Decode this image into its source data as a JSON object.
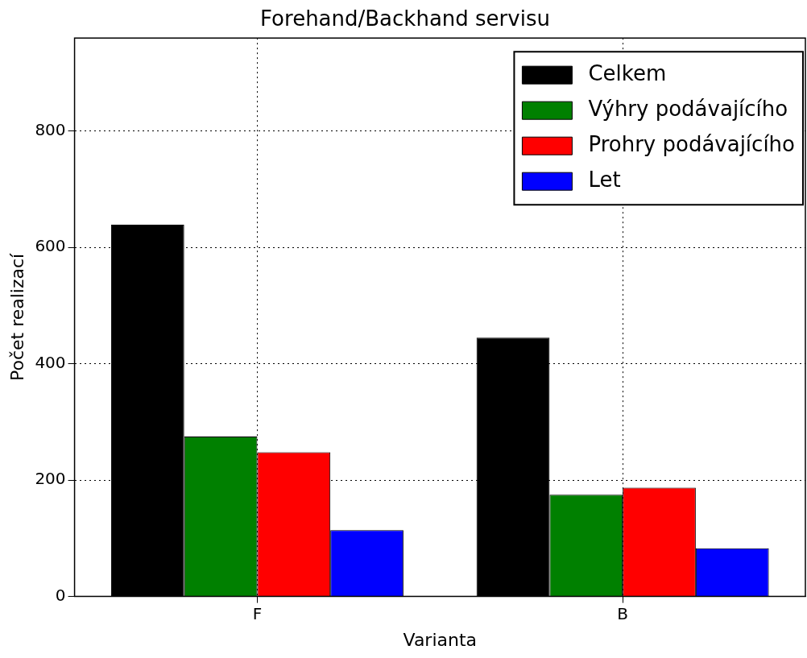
{
  "chart_data": {
    "type": "bar",
    "title": "Forehand/Backhand servisu",
    "xlabel": "Varianta",
    "ylabel": "Počet realizací",
    "categories": [
      "F",
      "B"
    ],
    "series": [
      {
        "name": "Celkem",
        "color": "#000000",
        "values": [
          639,
          445
        ]
      },
      {
        "name": "Výhry podávajícího",
        "color": "#008000",
        "values": [
          275,
          175
        ]
      },
      {
        "name": "Prohry podávajícího",
        "color": "#ff0000",
        "values": [
          248,
          187
        ]
      },
      {
        "name": "Let",
        "color": "#0000ff",
        "values": [
          114,
          83
        ]
      }
    ],
    "ylim": [
      0,
      960
    ],
    "yticks": [
      0,
      200,
      400,
      600,
      800
    ],
    "grid": true,
    "legend": "top right"
  }
}
